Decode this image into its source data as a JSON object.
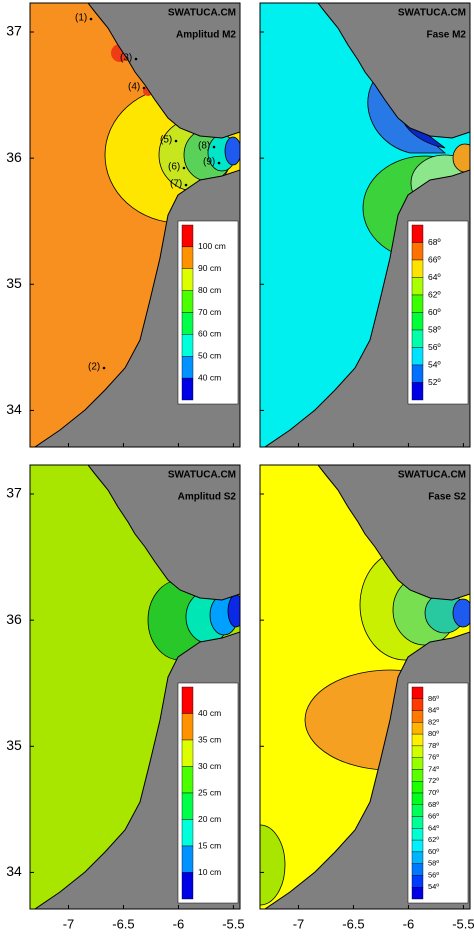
{
  "axes": {
    "lat_lim": [
      33.71,
      37.23
    ],
    "lon_lim": [
      -7.35,
      -5.44
    ],
    "lat_ticks": [
      37,
      36,
      35,
      34
    ],
    "lon_ticks": [
      -7,
      -6.5,
      -6,
      -5.5
    ]
  },
  "panels": [
    {
      "source": "SWATUCA.CM",
      "title": "Amplitud M2",
      "legend": [
        "100 cm",
        "90 cm",
        "80 cm",
        "70 cm",
        "60 cm",
        "50 cm",
        "40 cm"
      ],
      "markers": [
        "(1)",
        "(2)",
        "(3)",
        "(4)",
        "(5)",
        "(6)",
        "(7)",
        "(8)",
        "(9)"
      ]
    },
    {
      "source": "SWATUCA.CM",
      "title": "Fase M2",
      "legend": [
        "68º",
        "66º",
        "64º",
        "62º",
        "60º",
        "58º",
        "56º",
        "54º",
        "52º"
      ]
    },
    {
      "source": "SWATUCA.CM",
      "title": "Amplitud S2",
      "legend": [
        "40 cm",
        "35 cm",
        "30 cm",
        "25 cm",
        "20 cm",
        "15 cm",
        "10 cm"
      ]
    },
    {
      "source": "SWATUCA.CM",
      "title": "Fase S2",
      "legend": [
        "86º",
        "84º",
        "82º",
        "80º",
        "78º",
        "76º",
        "74º",
        "72º",
        "70º",
        "68º",
        "66º",
        "64º",
        "62º",
        "60º",
        "58º",
        "56º",
        "54º"
      ]
    }
  ]
}
